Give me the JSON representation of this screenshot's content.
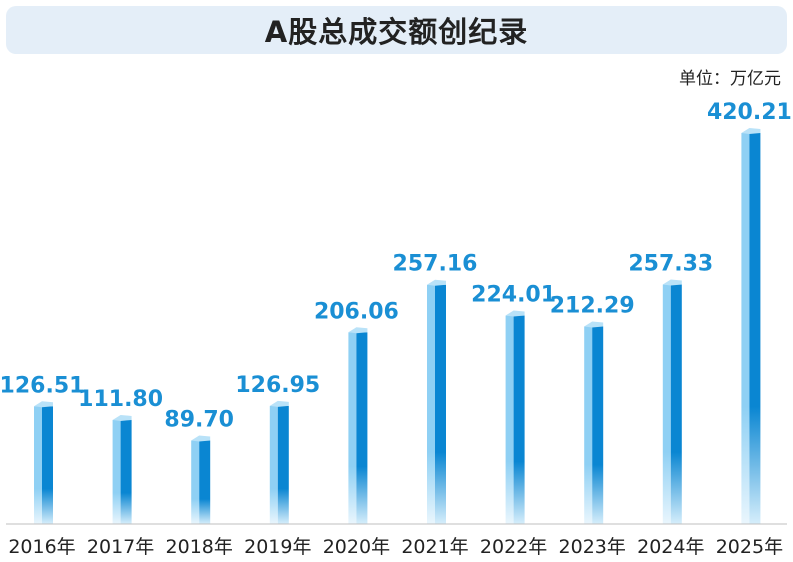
{
  "chart_data": {
    "type": "bar",
    "title": "A股总成交额创纪录",
    "unit_label": "单位：万亿元",
    "categories": [
      "2016年",
      "2017年",
      "2018年",
      "2019年",
      "2020年",
      "2021年",
      "2022年",
      "2023年",
      "2024年",
      "2025年"
    ],
    "values": [
      126.51,
      111.8,
      89.7,
      126.95,
      206.06,
      257.16,
      224.01,
      212.29,
      257.33,
      420.21
    ],
    "value_labels": [
      "126.51",
      "111.80",
      "89.70",
      "126.95",
      "206.06",
      "257.16",
      "224.01",
      "212.29",
      "257.33",
      "420.21"
    ],
    "ylim": [
      0,
      420.21
    ],
    "grid": false,
    "legend": "none",
    "colors": {
      "bar_dark": "#0a86d2",
      "bar_light": "#8fd0f4",
      "bar_top": "#b9e2f8",
      "label": "#1a8fd4",
      "title_bg": "#e4eef8"
    }
  }
}
